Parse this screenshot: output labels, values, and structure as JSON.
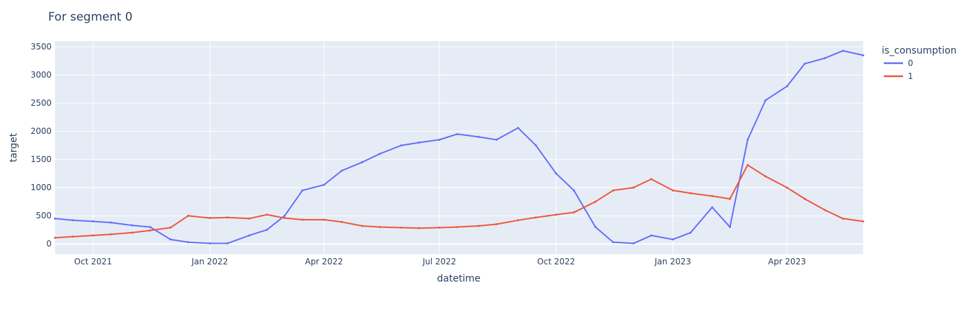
{
  "chart_data": {
    "type": "line",
    "title": "For segment 0",
    "xlabel": "datetime",
    "ylabel": "target",
    "x_range": [
      "2021-09-01",
      "2023-05-31"
    ],
    "y_range": [
      -180,
      3600
    ],
    "x_ticks": [
      {
        "date": "2021-10-01",
        "label": "Oct 2021"
      },
      {
        "date": "2022-01-01",
        "label": "Jan 2022"
      },
      {
        "date": "2022-04-01",
        "label": "Apr 2022"
      },
      {
        "date": "2022-07-01",
        "label": "Jul 2022"
      },
      {
        "date": "2022-10-01",
        "label": "Oct 2022"
      },
      {
        "date": "2023-01-01",
        "label": "Jan 2023"
      },
      {
        "date": "2023-04-01",
        "label": "Apr 2023"
      }
    ],
    "y_ticks": [
      0,
      500,
      1000,
      1500,
      2000,
      2500,
      3000,
      3500
    ],
    "grid": true,
    "plot_background": "#e5ecf6",
    "legend": {
      "title": "is_consumption",
      "placement": "right"
    },
    "series": [
      {
        "name": "0",
        "color": "#636efa",
        "points": [
          {
            "x": "2021-09-01",
            "y": 450
          },
          {
            "x": "2021-09-15",
            "y": 420
          },
          {
            "x": "2021-10-01",
            "y": 400
          },
          {
            "x": "2021-10-15",
            "y": 380
          },
          {
            "x": "2021-11-01",
            "y": 330
          },
          {
            "x": "2021-11-15",
            "y": 300
          },
          {
            "x": "2021-12-01",
            "y": 80
          },
          {
            "x": "2021-12-15",
            "y": 30
          },
          {
            "x": "2022-01-01",
            "y": 10
          },
          {
            "x": "2022-01-15",
            "y": 10
          },
          {
            "x": "2022-02-01",
            "y": 150
          },
          {
            "x": "2022-02-15",
            "y": 250
          },
          {
            "x": "2022-03-01",
            "y": 500
          },
          {
            "x": "2022-03-15",
            "y": 950
          },
          {
            "x": "2022-04-01",
            "y": 1050
          },
          {
            "x": "2022-04-15",
            "y": 1300
          },
          {
            "x": "2022-05-01",
            "y": 1450
          },
          {
            "x": "2022-05-15",
            "y": 1600
          },
          {
            "x": "2022-06-01",
            "y": 1750
          },
          {
            "x": "2022-06-15",
            "y": 1800
          },
          {
            "x": "2022-07-01",
            "y": 1850
          },
          {
            "x": "2022-07-15",
            "y": 1950
          },
          {
            "x": "2022-08-01",
            "y": 1900
          },
          {
            "x": "2022-08-15",
            "y": 1850
          },
          {
            "x": "2022-09-01",
            "y": 2060
          },
          {
            "x": "2022-09-15",
            "y": 1750
          },
          {
            "x": "2022-10-01",
            "y": 1250
          },
          {
            "x": "2022-10-15",
            "y": 950
          },
          {
            "x": "2022-11-01",
            "y": 300
          },
          {
            "x": "2022-11-15",
            "y": 30
          },
          {
            "x": "2022-12-01",
            "y": 10
          },
          {
            "x": "2022-12-15",
            "y": 150
          },
          {
            "x": "2023-01-01",
            "y": 80
          },
          {
            "x": "2023-01-15",
            "y": 200
          },
          {
            "x": "2023-02-01",
            "y": 650
          },
          {
            "x": "2023-02-15",
            "y": 300
          },
          {
            "x": "2023-03-01",
            "y": 1850
          },
          {
            "x": "2023-03-15",
            "y": 2550
          },
          {
            "x": "2023-04-01",
            "y": 2800
          },
          {
            "x": "2023-04-15",
            "y": 3200
          },
          {
            "x": "2023-05-01",
            "y": 3300
          },
          {
            "x": "2023-05-15",
            "y": 3430
          },
          {
            "x": "2023-05-31",
            "y": 3350
          }
        ]
      },
      {
        "name": "1",
        "color": "#ef553b",
        "points": [
          {
            "x": "2021-09-01",
            "y": 110
          },
          {
            "x": "2021-09-15",
            "y": 130
          },
          {
            "x": "2021-10-01",
            "y": 150
          },
          {
            "x": "2021-10-15",
            "y": 170
          },
          {
            "x": "2021-11-01",
            "y": 200
          },
          {
            "x": "2021-11-15",
            "y": 240
          },
          {
            "x": "2021-12-01",
            "y": 290
          },
          {
            "x": "2021-12-15",
            "y": 500
          },
          {
            "x": "2022-01-01",
            "y": 460
          },
          {
            "x": "2022-01-15",
            "y": 470
          },
          {
            "x": "2022-02-01",
            "y": 450
          },
          {
            "x": "2022-02-15",
            "y": 520
          },
          {
            "x": "2022-03-01",
            "y": 460
          },
          {
            "x": "2022-03-15",
            "y": 430
          },
          {
            "x": "2022-04-01",
            "y": 430
          },
          {
            "x": "2022-04-15",
            "y": 390
          },
          {
            "x": "2022-05-01",
            "y": 320
          },
          {
            "x": "2022-05-15",
            "y": 300
          },
          {
            "x": "2022-06-01",
            "y": 290
          },
          {
            "x": "2022-06-15",
            "y": 280
          },
          {
            "x": "2022-07-01",
            "y": 290
          },
          {
            "x": "2022-07-15",
            "y": 300
          },
          {
            "x": "2022-08-01",
            "y": 320
          },
          {
            "x": "2022-08-15",
            "y": 350
          },
          {
            "x": "2022-09-01",
            "y": 420
          },
          {
            "x": "2022-09-15",
            "y": 470
          },
          {
            "x": "2022-10-01",
            "y": 520
          },
          {
            "x": "2022-10-15",
            "y": 560
          },
          {
            "x": "2022-11-01",
            "y": 750
          },
          {
            "x": "2022-11-15",
            "y": 950
          },
          {
            "x": "2022-12-01",
            "y": 1000
          },
          {
            "x": "2022-12-15",
            "y": 1150
          },
          {
            "x": "2023-01-01",
            "y": 950
          },
          {
            "x": "2023-01-15",
            "y": 900
          },
          {
            "x": "2023-02-01",
            "y": 850
          },
          {
            "x": "2023-02-15",
            "y": 800
          },
          {
            "x": "2023-03-01",
            "y": 1400
          },
          {
            "x": "2023-03-15",
            "y": 1200
          },
          {
            "x": "2023-04-01",
            "y": 1000
          },
          {
            "x": "2023-04-15",
            "y": 800
          },
          {
            "x": "2023-05-01",
            "y": 600
          },
          {
            "x": "2023-05-15",
            "y": 450
          },
          {
            "x": "2023-05-31",
            "y": 400
          }
        ]
      }
    ]
  }
}
